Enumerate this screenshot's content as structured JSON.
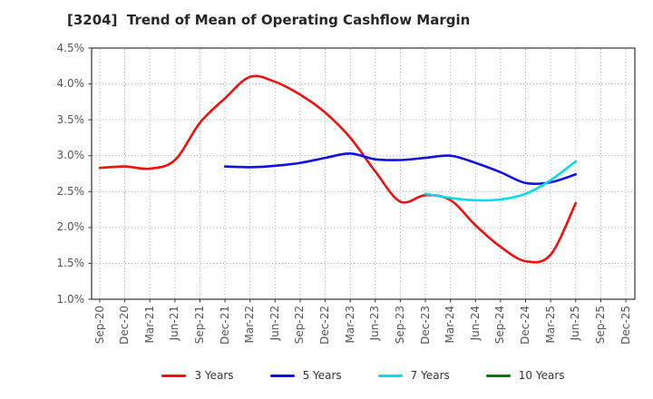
{
  "title": "[3204]  Trend of Mean of Operating Cashflow Margin",
  "chart_data": {
    "type": "line",
    "title": "[3204]  Trend of Mean of Operating Cashflow Margin",
    "xlabel": "",
    "ylabel": "",
    "ylim": [
      1.0,
      4.5
    ],
    "y_tick_step": 0.5,
    "y_tick_labels": [
      "1.0%",
      "1.5%",
      "2.0%",
      "2.5%",
      "3.0%",
      "3.5%",
      "4.0%",
      "4.5%"
    ],
    "grid": true,
    "grid_style": "dotted",
    "legend_position": "bottom",
    "categories": [
      "Sep-20",
      "Dec-20",
      "Mar-21",
      "Jun-21",
      "Sep-21",
      "Dec-21",
      "Mar-22",
      "Jun-22",
      "Sep-22",
      "Dec-22",
      "Mar-23",
      "Jun-23",
      "Sep-23",
      "Dec-23",
      "Mar-24",
      "Jun-24",
      "Sep-24",
      "Dec-24",
      "Mar-25",
      "Jun-25",
      "Sep-25",
      "Dec-25"
    ],
    "series": [
      {
        "name": "3 Years",
        "color": "#f01010",
        "values": [
          2.83,
          2.85,
          2.82,
          2.94,
          3.46,
          3.8,
          4.1,
          4.03,
          3.85,
          3.6,
          3.25,
          2.78,
          2.36,
          2.45,
          2.38,
          2.03,
          1.73,
          1.53,
          1.62,
          2.34,
          null,
          null
        ]
      },
      {
        "name": "5 Years",
        "color": "#0f0fe6",
        "values": [
          null,
          null,
          null,
          null,
          null,
          2.85,
          2.84,
          2.86,
          2.9,
          2.97,
          3.03,
          2.95,
          2.94,
          2.97,
          3.0,
          2.9,
          2.77,
          2.62,
          2.63,
          2.74,
          null,
          null
        ]
      },
      {
        "name": "7 Years",
        "color": "#00dce8",
        "values": [
          null,
          null,
          null,
          null,
          null,
          null,
          null,
          null,
          null,
          null,
          null,
          null,
          null,
          2.47,
          2.41,
          2.38,
          2.39,
          2.47,
          2.66,
          2.92,
          null,
          null
        ]
      },
      {
        "name": "10 Years",
        "color": "#007d00",
        "values": [
          null,
          null,
          null,
          null,
          null,
          null,
          null,
          null,
          null,
          null,
          null,
          null,
          null,
          null,
          null,
          null,
          null,
          null,
          null,
          null,
          null,
          null
        ]
      }
    ]
  },
  "colors": {
    "background": "#ffffff",
    "plot_border": "#333333",
    "gridline": "#9a9a9a",
    "tick_label": "#555555",
    "title": "#262626",
    "legend_text": "#333333"
  }
}
